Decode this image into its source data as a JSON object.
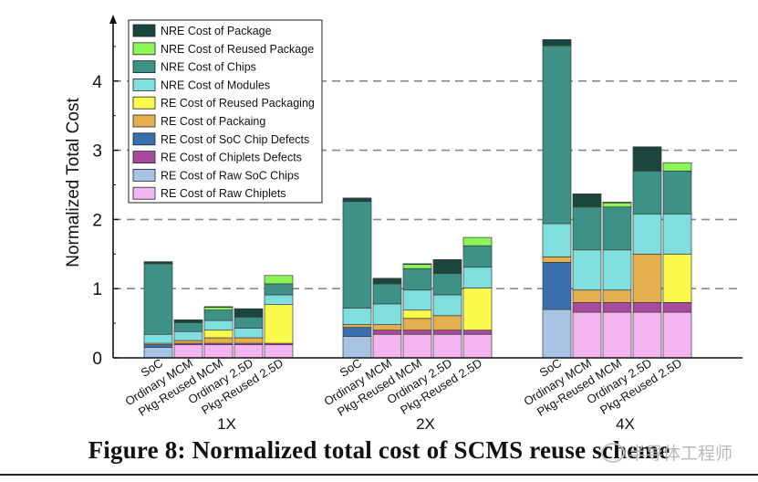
{
  "chart_data": {
    "type": "bar",
    "stacked": true,
    "ylabel": "Normalized Total Cost",
    "xlabel": "",
    "ylim": [
      0,
      4.8
    ],
    "yticks": [
      0,
      1,
      2,
      3,
      4
    ],
    "grid": "horizontal dashed",
    "legend_position": "top-left",
    "groups": [
      "1X",
      "2X",
      "4X"
    ],
    "categories": [
      "SoC",
      "Ordinary MCM",
      "Pkg-Reused MCM",
      "Ordinary 2.5D",
      "Pkg-Reused 2.5D"
    ],
    "series": [
      {
        "name": "RE Cost of Raw Chiplets",
        "color": "#f4b4f0",
        "values": [
          [
            0,
            0.19,
            0.19,
            0.19,
            0.19
          ],
          [
            0,
            0.34,
            0.34,
            0.34,
            0.34
          ],
          [
            0,
            0.66,
            0.66,
            0.66,
            0.66
          ]
        ]
      },
      {
        "name": "RE Cost of Raw SoC Chips",
        "color": "#a8c4e4",
        "values": [
          [
            0.15,
            0,
            0,
            0,
            0
          ],
          [
            0.31,
            0,
            0,
            0,
            0
          ],
          [
            0.7,
            0,
            0,
            0,
            0
          ]
        ]
      },
      {
        "name": "RE Cost of Chiplets Defects",
        "color": "#a84b9e",
        "values": [
          [
            0,
            0.02,
            0.02,
            0.02,
            0.02
          ],
          [
            0,
            0.06,
            0.06,
            0.06,
            0.06
          ],
          [
            0,
            0.14,
            0.14,
            0.14,
            0.14
          ]
        ]
      },
      {
        "name": "RE Cost of SoC Chip Defects",
        "color": "#3a6fae",
        "values": [
          [
            0.04,
            0,
            0,
            0,
            0
          ],
          [
            0.13,
            0,
            0,
            0,
            0
          ],
          [
            0.68,
            0,
            0,
            0,
            0
          ]
        ]
      },
      {
        "name": "RE Cost of Packaing",
        "color": "#e3b04d",
        "values": [
          [
            0.02,
            0.04,
            0.08,
            0.08,
            0
          ],
          [
            0.04,
            0.08,
            0.17,
            0.21,
            0
          ],
          [
            0.08,
            0.18,
            0.18,
            0.7,
            0
          ]
        ]
      },
      {
        "name": "RE Cost of Reused Packaging",
        "color": "#fafa4c",
        "values": [
          [
            0,
            0,
            0.11,
            0,
            0.56
          ],
          [
            0,
            0,
            0.12,
            0,
            0.61
          ],
          [
            0,
            0,
            0,
            0,
            0.7
          ]
        ]
      },
      {
        "name": "NRE Cost of Modules",
        "color": "#7fdede",
        "values": [
          [
            0.13,
            0.13,
            0.14,
            0.14,
            0.14
          ],
          [
            0.24,
            0.3,
            0.29,
            0.3,
            0.3
          ],
          [
            0.48,
            0.58,
            0.58,
            0.58,
            0.58
          ]
        ]
      },
      {
        "name": "NRE Cost of Chips",
        "color": "#3e9185",
        "values": [
          [
            1.02,
            0.13,
            0.15,
            0.16,
            0.16
          ],
          [
            1.54,
            0.29,
            0.31,
            0.31,
            0.31
          ],
          [
            2.57,
            0.62,
            0.62,
            0.62,
            0.62
          ]
        ]
      },
      {
        "name": "NRE Cost of Reused Package",
        "color": "#8cf558",
        "values": [
          [
            0,
            0,
            0.04,
            0,
            0.12
          ],
          [
            0,
            0,
            0.06,
            0,
            0.12
          ],
          [
            0,
            0,
            0.06,
            0,
            0.12
          ]
        ]
      },
      {
        "name": "NRE Cost of Package",
        "color": "#1b463e",
        "values": [
          [
            0.03,
            0.04,
            0.01,
            0.12,
            0
          ],
          [
            0.05,
            0.08,
            0.01,
            0.2,
            0
          ],
          [
            0.09,
            0.19,
            0.01,
            0.35,
            0
          ]
        ]
      }
    ]
  },
  "caption": "Figure 8: Normalized total cost of SCMS reuse scheme",
  "watermark": "半导体工程师"
}
